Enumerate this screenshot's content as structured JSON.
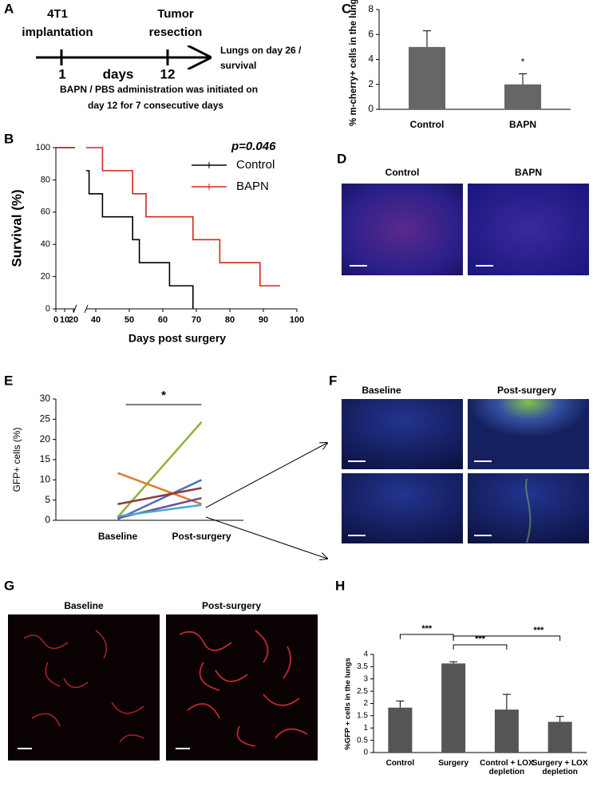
{
  "panel_labels": [
    "A",
    "B",
    "C",
    "D",
    "E",
    "F",
    "G",
    "H"
  ],
  "timeline": {
    "start_label": [
      "4T1",
      "implantation"
    ],
    "end_label": [
      "Tumor",
      "resection"
    ],
    "start_day": 1,
    "unit": "days",
    "end_day": 12,
    "outcome": [
      "Lungs on day 26 /",
      "survival"
    ],
    "note": [
      "BAPN / PBS administration was initiated on",
      "day 12 for 7 consecutive days"
    ]
  },
  "images": {
    "D": [
      "Control",
      "BAPN"
    ],
    "F": [
      "Baseline",
      "Post-surgery"
    ],
    "G": [
      "Baseline",
      "Post-surgery"
    ]
  },
  "chart_data": [
    {
      "type": "bar",
      "ylabel": "% m-cherry+ cells in the lungs",
      "categories": [
        "Control",
        "BAPN"
      ],
      "values": [
        5,
        2
      ],
      "errors": [
        1.3,
        0.85
      ],
      "color": "#666666",
      "ylim": [
        0,
        8
      ],
      "yticks": [
        0,
        2,
        4,
        6,
        8
      ],
      "annotations": [
        "*"
      ]
    },
    {
      "type": "survival",
      "xlabel": "Days post surgery",
      "ylabel": "Survival (%)",
      "annotations": [
        "p=0.046"
      ],
      "series": [
        {
          "name": "Control",
          "color": "#000000",
          "x": [
            0,
            36,
            38,
            42,
            51,
            53,
            62,
            69
          ],
          "values": [
            100,
            85.7,
            71.4,
            57.1,
            42.9,
            28.6,
            14.3,
            0
          ]
        },
        {
          "name": "BAPN",
          "color": "#d7261e",
          "x": [
            0,
            42,
            51,
            55,
            69,
            77,
            89,
            95
          ],
          "values": [
            100,
            85.7,
            71.4,
            57.1,
            42.9,
            28.6,
            14.3,
            14.3
          ]
        }
      ],
      "xlim": [
        0,
        100
      ],
      "xticks": [
        0,
        10,
        20,
        40,
        50,
        60,
        70,
        80,
        90,
        100
      ],
      "ylim": [
        0,
        100
      ],
      "yticks": [
        0,
        20,
        40,
        60,
        80,
        100
      ]
    },
    {
      "type": "line",
      "ylabel": "GFP+ cells (%)",
      "categories": [
        "Baseline",
        "Post-surgery"
      ],
      "annotations": [
        "*"
      ],
      "series": [
        {
          "color": "#8db33a",
          "values": [
            0.8,
            24.3
          ]
        },
        {
          "color": "#4a6fb5",
          "values": [
            0.3,
            10
          ]
        },
        {
          "color": "#e07b2a",
          "values": [
            11.7,
            4
          ]
        },
        {
          "color": "#8e3b3b",
          "values": [
            4,
            8
          ]
        },
        {
          "color": "#6b4f9e",
          "values": [
            0.5,
            5.5
          ]
        },
        {
          "color": "#4aa8c8",
          "values": [
            1,
            3.8
          ]
        }
      ],
      "ylim": [
        0,
        30
      ],
      "yticks": [
        0,
        5,
        10,
        15,
        20,
        25,
        30
      ]
    },
    {
      "type": "bar",
      "ylabel": "%GFP + cells in the lungs",
      "categories": [
        "Control",
        "Surgery",
        "Control + LOX depletion",
        "Surgery + LOX depletion"
      ],
      "values": [
        1.83,
        3.63,
        1.75,
        1.25
      ],
      "errors": [
        0.27,
        0.07,
        0.62,
        0.22
      ],
      "color": "#555555",
      "ylim": [
        0,
        4
      ],
      "yticks": [
        0,
        0.5,
        1,
        1.5,
        2,
        2.5,
        3,
        3.5,
        4
      ],
      "annotations": [
        "***",
        "***",
        "***"
      ]
    }
  ]
}
